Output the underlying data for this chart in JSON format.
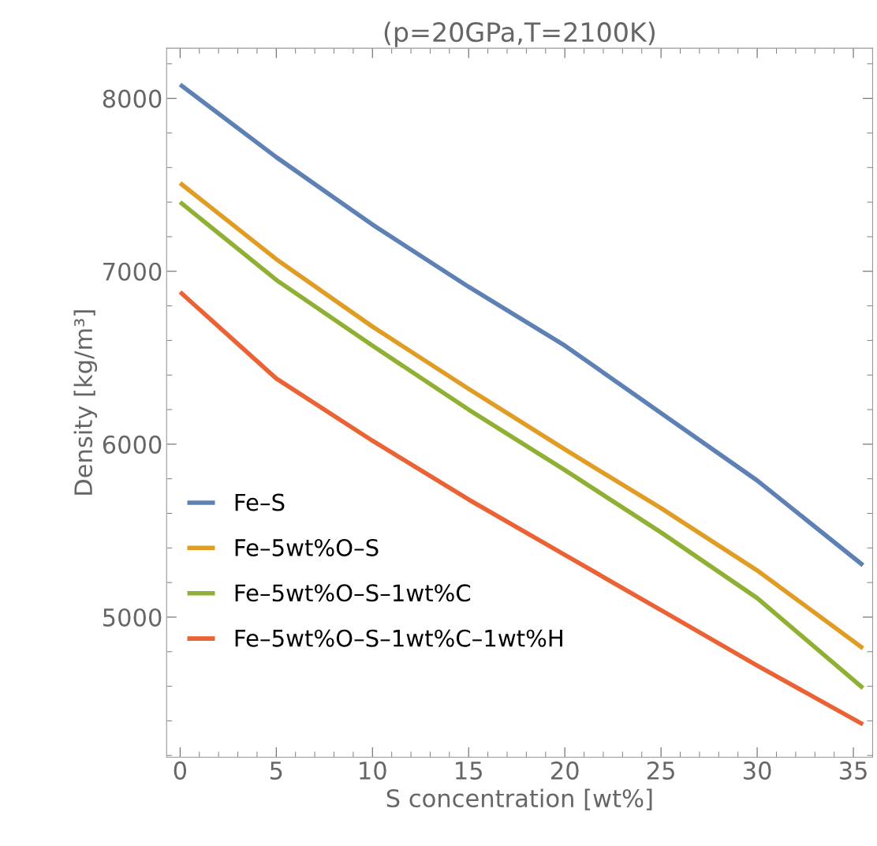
{
  "chart_data": {
    "type": "line",
    "title": "(p=20GPa,T=2100K)",
    "xlabel": "S concentration [wt%]",
    "ylabel": "Density [kg/m³]",
    "x": [
      0,
      5,
      10,
      15,
      20,
      25,
      30,
      35.5
    ],
    "series": [
      {
        "name": "Fe–S",
        "color": "#5e81b5",
        "values": [
          8080,
          7660,
          7270,
          6910,
          6570,
          6180,
          5790,
          5300
        ]
      },
      {
        "name": "Fe–5wt%O–S",
        "color": "#e19c24",
        "values": [
          7510,
          7070,
          6680,
          6320,
          5970,
          5630,
          5270,
          4820
        ]
      },
      {
        "name": "Fe–5wt%O–S–1wt%C",
        "color": "#8fb032",
        "values": [
          7400,
          6950,
          6570,
          6200,
          5850,
          5490,
          5110,
          4590
        ]
      },
      {
        "name": "Fe–5wt%O–S–1wt%C–1wt%H",
        "color": "#eb6235",
        "values": [
          6880,
          6380,
          6020,
          5680,
          5360,
          5040,
          4720,
          4380
        ]
      }
    ],
    "xlim": [
      -0.7,
      36.0
    ],
    "ylim": [
      4190,
      8290
    ],
    "xticks": [
      0,
      5,
      10,
      15,
      20,
      25,
      30,
      35
    ],
    "yticks": [
      5000,
      6000,
      7000,
      8000
    ],
    "grid": false,
    "legend": "lower left",
    "marker": "none",
    "line_style": "solid"
  }
}
